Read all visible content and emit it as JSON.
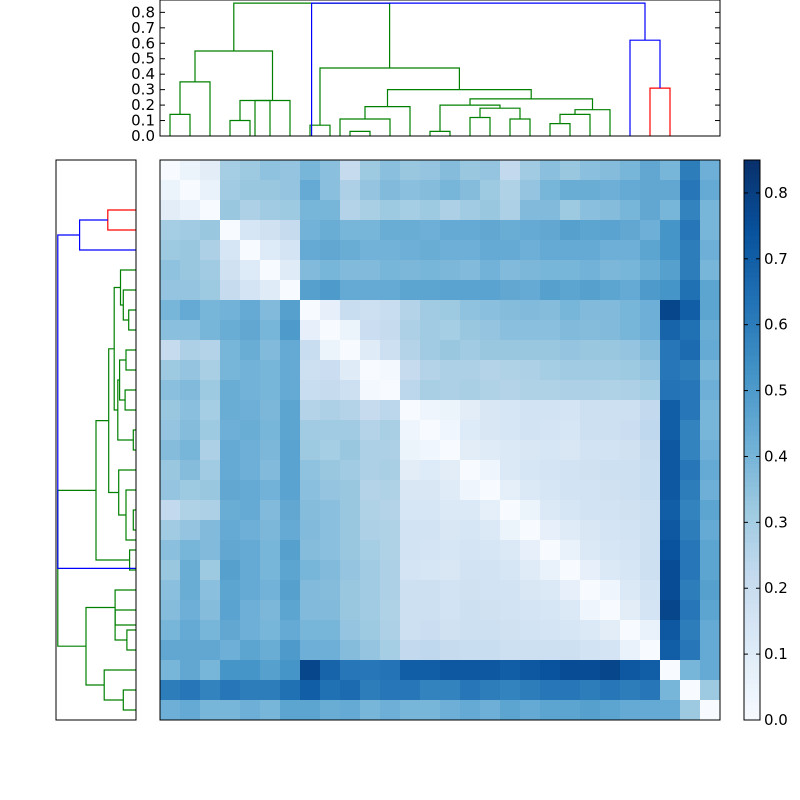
{
  "chart_data": {
    "type": "heatmap",
    "title": "",
    "description_labels": [],
    "colormap": {
      "name": "Blues",
      "stops": [
        "#f7fbff",
        "#deebf7",
        "#c6dbef",
        "#9ecae1",
        "#6baed6",
        "#4292c6",
        "#2171b5",
        "#08519c",
        "#08306b"
      ],
      "vmin": 0.0,
      "vmax": 0.85
    },
    "colorbar": {
      "ticks": [
        0.0,
        0.1,
        0.2,
        0.3,
        0.4,
        0.5,
        0.6,
        0.7,
        0.8
      ],
      "tick_labels": [
        "0.0",
        "0.1",
        "0.2",
        "0.3",
        "0.4",
        "0.5",
        "0.6",
        "0.7",
        "0.8"
      ]
    },
    "dendrogram_top": {
      "ylim": [
        0,
        0.88
      ],
      "ticks": [
        0.0,
        0.1,
        0.2,
        0.3,
        0.4,
        0.5,
        0.6,
        0.7,
        0.8
      ],
      "tick_labels": [
        "0.0",
        "0.1",
        "0.2",
        "0.3",
        "0.4",
        "0.5",
        "0.6",
        "0.7",
        "0.8"
      ],
      "n_leaves": 28,
      "colors": {
        "green": "#008000",
        "red": "#ff0000",
        "blue": "#0000ff"
      },
      "links": [
        {
          "a": 0,
          "b": 1,
          "h": 0.14,
          "c": "green"
        },
        {
          "a": 0.5,
          "b": 2,
          "h": 0.35,
          "c": "green"
        },
        {
          "a": 3,
          "b": 4,
          "h": 0.1,
          "c": "green"
        },
        {
          "a": 3.5,
          "b": 5,
          "h": 0.23,
          "c": "green"
        },
        {
          "a": 4.25,
          "b": 6,
          "h": 0.23,
          "c": "green"
        },
        {
          "a": 1.25,
          "b": 5.125,
          "h": 0.55,
          "c": "green"
        },
        {
          "a": 7,
          "b": 8,
          "h": 0.07,
          "c": "green"
        },
        {
          "a": 9,
          "b": 10,
          "h": 0.03,
          "c": "green"
        },
        {
          "a": 8.5,
          "b": 11,
          "h": 0.11,
          "c": "green"
        },
        {
          "a": 9.75,
          "b": 12,
          "h": 0.19,
          "c": "green"
        },
        {
          "a": 13,
          "b": 14,
          "h": 0.03,
          "c": "green"
        },
        {
          "a": 15,
          "b": 16,
          "h": 0.12,
          "c": "green"
        },
        {
          "a": 17,
          "b": 18,
          "h": 0.11,
          "c": "green"
        },
        {
          "a": 15.5,
          "b": 17.5,
          "h": 0.18,
          "c": "green"
        },
        {
          "a": 13.5,
          "b": 16.5,
          "h": 0.2,
          "c": "green"
        },
        {
          "a": 19,
          "b": 20,
          "h": 0.08,
          "c": "green"
        },
        {
          "a": 19.5,
          "b": 21,
          "h": 0.14,
          "c": "green"
        },
        {
          "a": 20.25,
          "b": 22,
          "h": 0.17,
          "c": "green"
        },
        {
          "a": 15,
          "b": 21.125,
          "h": 0.24,
          "c": "green"
        },
        {
          "a": 10.875,
          "b": 18.06,
          "h": 0.3,
          "c": "green"
        },
        {
          "a": 7.5,
          "b": 14.47,
          "h": 0.44,
          "c": "green"
        },
        {
          "a": 3.19,
          "b": 10.98,
          "h": 0.86,
          "c": "green"
        },
        {
          "a": 24,
          "b": 25,
          "h": 0.31,
          "c": "red"
        },
        {
          "a": 23,
          "b": 24.5,
          "h": 0.62,
          "c": "blue"
        },
        {
          "a": 7.08,
          "b": 23.75,
          "h": 0.86,
          "c": "blue"
        }
      ]
    },
    "dendrogram_left_note": "mirror of top dendrogram (rows)",
    "matrix": {
      "n": 28,
      "values": [
        [
          0.0,
          0.05,
          0.09,
          0.3,
          0.32,
          0.35,
          0.34,
          0.4,
          0.36,
          0.21,
          0.32,
          0.36,
          0.33,
          0.34,
          0.37,
          0.33,
          0.34,
          0.22,
          0.31,
          0.36,
          0.33,
          0.36,
          0.37,
          0.4,
          0.45,
          0.4,
          0.6,
          0.42
        ],
        [
          0.05,
          0.0,
          0.06,
          0.31,
          0.33,
          0.33,
          0.34,
          0.44,
          0.36,
          0.28,
          0.34,
          0.38,
          0.36,
          0.37,
          0.4,
          0.37,
          0.32,
          0.27,
          0.34,
          0.4,
          0.43,
          0.43,
          0.42,
          0.44,
          0.45,
          0.45,
          0.62,
          0.44
        ],
        [
          0.09,
          0.06,
          0.0,
          0.33,
          0.28,
          0.31,
          0.32,
          0.4,
          0.4,
          0.26,
          0.29,
          0.32,
          0.3,
          0.32,
          0.28,
          0.31,
          0.33,
          0.28,
          0.38,
          0.38,
          0.32,
          0.36,
          0.37,
          0.4,
          0.45,
          0.4,
          0.58,
          0.4
        ],
        [
          0.3,
          0.31,
          0.33,
          0.0,
          0.14,
          0.17,
          0.21,
          0.41,
          0.43,
          0.4,
          0.4,
          0.43,
          0.43,
          0.42,
          0.44,
          0.44,
          0.45,
          0.43,
          0.44,
          0.45,
          0.48,
          0.46,
          0.47,
          0.45,
          0.42,
          0.52,
          0.62,
          0.4
        ],
        [
          0.32,
          0.33,
          0.28,
          0.14,
          0.0,
          0.11,
          0.15,
          0.44,
          0.45,
          0.43,
          0.41,
          0.41,
          0.42,
          0.43,
          0.42,
          0.42,
          0.44,
          0.44,
          0.42,
          0.44,
          0.44,
          0.44,
          0.42,
          0.42,
          0.46,
          0.52,
          0.6,
          0.42
        ],
        [
          0.35,
          0.33,
          0.31,
          0.17,
          0.11,
          0.0,
          0.1,
          0.38,
          0.4,
          0.38,
          0.38,
          0.4,
          0.39,
          0.4,
          0.39,
          0.38,
          0.41,
          0.38,
          0.39,
          0.4,
          0.4,
          0.41,
          0.39,
          0.4,
          0.43,
          0.48,
          0.6,
          0.4
        ],
        [
          0.34,
          0.34,
          0.32,
          0.21,
          0.15,
          0.1,
          0.0,
          0.48,
          0.5,
          0.44,
          0.44,
          0.44,
          0.46,
          0.46,
          0.47,
          0.47,
          0.47,
          0.45,
          0.44,
          0.48,
          0.46,
          0.48,
          0.46,
          0.44,
          0.5,
          0.52,
          0.64,
          0.46
        ],
        [
          0.4,
          0.44,
          0.4,
          0.41,
          0.44,
          0.38,
          0.48,
          0.0,
          0.07,
          0.2,
          0.18,
          0.2,
          0.26,
          0.31,
          0.32,
          0.35,
          0.36,
          0.37,
          0.38,
          0.37,
          0.4,
          0.38,
          0.38,
          0.4,
          0.42,
          0.78,
          0.7,
          0.46
        ],
        [
          0.36,
          0.36,
          0.4,
          0.43,
          0.45,
          0.4,
          0.5,
          0.07,
          0.0,
          0.05,
          0.19,
          0.21,
          0.28,
          0.31,
          0.3,
          0.33,
          0.34,
          0.36,
          0.36,
          0.36,
          0.38,
          0.37,
          0.38,
          0.4,
          0.42,
          0.68,
          0.64,
          0.43
        ],
        [
          0.21,
          0.28,
          0.26,
          0.4,
          0.43,
          0.38,
          0.44,
          0.2,
          0.05,
          0.0,
          0.1,
          0.18,
          0.26,
          0.31,
          0.33,
          0.31,
          0.33,
          0.33,
          0.33,
          0.33,
          0.34,
          0.33,
          0.33,
          0.34,
          0.37,
          0.62,
          0.66,
          0.44
        ],
        [
          0.32,
          0.34,
          0.29,
          0.4,
          0.41,
          0.4,
          0.44,
          0.18,
          0.19,
          0.1,
          0.0,
          0.02,
          0.21,
          0.26,
          0.28,
          0.28,
          0.26,
          0.27,
          0.28,
          0.3,
          0.31,
          0.31,
          0.31,
          0.32,
          0.34,
          0.62,
          0.6,
          0.4
        ],
        [
          0.36,
          0.38,
          0.32,
          0.43,
          0.41,
          0.4,
          0.44,
          0.2,
          0.21,
          0.18,
          0.02,
          0.0,
          0.24,
          0.29,
          0.28,
          0.29,
          0.27,
          0.26,
          0.27,
          0.27,
          0.28,
          0.28,
          0.27,
          0.28,
          0.3,
          0.63,
          0.62,
          0.42
        ],
        [
          0.33,
          0.36,
          0.3,
          0.43,
          0.42,
          0.39,
          0.46,
          0.26,
          0.28,
          0.26,
          0.21,
          0.24,
          0.0,
          0.04,
          0.05,
          0.09,
          0.13,
          0.14,
          0.16,
          0.16,
          0.15,
          0.18,
          0.18,
          0.18,
          0.22,
          0.7,
          0.62,
          0.4
        ],
        [
          0.34,
          0.37,
          0.32,
          0.42,
          0.43,
          0.4,
          0.46,
          0.31,
          0.31,
          0.31,
          0.26,
          0.29,
          0.04,
          0.0,
          0.03,
          0.11,
          0.13,
          0.14,
          0.16,
          0.15,
          0.14,
          0.18,
          0.18,
          0.19,
          0.23,
          0.7,
          0.58,
          0.4
        ],
        [
          0.37,
          0.4,
          0.28,
          0.44,
          0.42,
          0.39,
          0.47,
          0.32,
          0.3,
          0.33,
          0.28,
          0.28,
          0.05,
          0.03,
          0.0,
          0.09,
          0.1,
          0.12,
          0.13,
          0.14,
          0.13,
          0.16,
          0.16,
          0.17,
          0.21,
          0.72,
          0.58,
          0.42
        ],
        [
          0.33,
          0.37,
          0.31,
          0.44,
          0.42,
          0.38,
          0.47,
          0.35,
          0.33,
          0.31,
          0.28,
          0.29,
          0.09,
          0.11,
          0.09,
          0.0,
          0.04,
          0.12,
          0.14,
          0.15,
          0.16,
          0.17,
          0.18,
          0.18,
          0.2,
          0.72,
          0.62,
          0.44
        ],
        [
          0.34,
          0.32,
          0.33,
          0.45,
          0.44,
          0.41,
          0.47,
          0.36,
          0.34,
          0.33,
          0.26,
          0.27,
          0.13,
          0.13,
          0.1,
          0.04,
          0.0,
          0.08,
          0.12,
          0.14,
          0.16,
          0.16,
          0.17,
          0.18,
          0.2,
          0.72,
          0.6,
          0.42
        ],
        [
          0.22,
          0.27,
          0.28,
          0.43,
          0.44,
          0.38,
          0.45,
          0.37,
          0.36,
          0.33,
          0.27,
          0.26,
          0.14,
          0.14,
          0.12,
          0.12,
          0.08,
          0.0,
          0.05,
          0.12,
          0.14,
          0.16,
          0.16,
          0.17,
          0.18,
          0.7,
          0.58,
          0.46
        ],
        [
          0.31,
          0.34,
          0.38,
          0.44,
          0.42,
          0.39,
          0.44,
          0.38,
          0.36,
          0.33,
          0.28,
          0.27,
          0.16,
          0.16,
          0.13,
          0.14,
          0.12,
          0.05,
          0.0,
          0.07,
          0.1,
          0.13,
          0.15,
          0.16,
          0.18,
          0.72,
          0.6,
          0.44
        ],
        [
          0.36,
          0.4,
          0.38,
          0.45,
          0.44,
          0.4,
          0.48,
          0.37,
          0.36,
          0.33,
          0.3,
          0.27,
          0.16,
          0.15,
          0.14,
          0.15,
          0.14,
          0.12,
          0.07,
          0.0,
          0.06,
          0.12,
          0.14,
          0.15,
          0.18,
          0.74,
          0.62,
          0.46
        ],
        [
          0.33,
          0.43,
          0.32,
          0.48,
          0.44,
          0.4,
          0.46,
          0.4,
          0.38,
          0.34,
          0.31,
          0.28,
          0.15,
          0.14,
          0.13,
          0.16,
          0.16,
          0.14,
          0.1,
          0.06,
          0.0,
          0.07,
          0.12,
          0.14,
          0.18,
          0.76,
          0.62,
          0.46
        ],
        [
          0.36,
          0.43,
          0.36,
          0.46,
          0.44,
          0.41,
          0.48,
          0.38,
          0.37,
          0.33,
          0.31,
          0.28,
          0.18,
          0.18,
          0.16,
          0.17,
          0.16,
          0.16,
          0.13,
          0.12,
          0.07,
          0.0,
          0.04,
          0.12,
          0.16,
          0.76,
          0.6,
          0.48
        ],
        [
          0.37,
          0.42,
          0.37,
          0.47,
          0.42,
          0.39,
          0.46,
          0.38,
          0.38,
          0.33,
          0.31,
          0.27,
          0.18,
          0.18,
          0.16,
          0.18,
          0.17,
          0.16,
          0.15,
          0.14,
          0.12,
          0.04,
          0.0,
          0.09,
          0.15,
          0.78,
          0.62,
          0.46
        ],
        [
          0.4,
          0.44,
          0.4,
          0.45,
          0.42,
          0.4,
          0.44,
          0.4,
          0.4,
          0.34,
          0.32,
          0.28,
          0.18,
          0.19,
          0.17,
          0.18,
          0.18,
          0.17,
          0.16,
          0.15,
          0.14,
          0.12,
          0.09,
          0.0,
          0.06,
          0.72,
          0.6,
          0.44
        ],
        [
          0.45,
          0.45,
          0.45,
          0.42,
          0.46,
          0.43,
          0.5,
          0.42,
          0.42,
          0.37,
          0.34,
          0.3,
          0.22,
          0.23,
          0.21,
          0.2,
          0.2,
          0.18,
          0.18,
          0.18,
          0.18,
          0.16,
          0.15,
          0.06,
          0.0,
          0.7,
          0.62,
          0.44
        ],
        [
          0.4,
          0.45,
          0.4,
          0.52,
          0.52,
          0.48,
          0.52,
          0.78,
          0.68,
          0.62,
          0.62,
          0.63,
          0.7,
          0.7,
          0.72,
          0.72,
          0.72,
          0.7,
          0.72,
          0.74,
          0.76,
          0.76,
          0.78,
          0.72,
          0.7,
          0.0,
          0.4,
          0.44
        ],
        [
          0.6,
          0.62,
          0.58,
          0.62,
          0.6,
          0.6,
          0.64,
          0.7,
          0.64,
          0.66,
          0.6,
          0.62,
          0.62,
          0.58,
          0.58,
          0.62,
          0.6,
          0.58,
          0.6,
          0.62,
          0.62,
          0.6,
          0.62,
          0.6,
          0.62,
          0.4,
          0.0,
          0.32
        ],
        [
          0.42,
          0.44,
          0.4,
          0.4,
          0.42,
          0.4,
          0.46,
          0.46,
          0.43,
          0.44,
          0.4,
          0.42,
          0.4,
          0.4,
          0.42,
          0.44,
          0.42,
          0.46,
          0.44,
          0.46,
          0.46,
          0.48,
          0.46,
          0.44,
          0.44,
          0.44,
          0.32,
          0.0
        ]
      ]
    }
  }
}
